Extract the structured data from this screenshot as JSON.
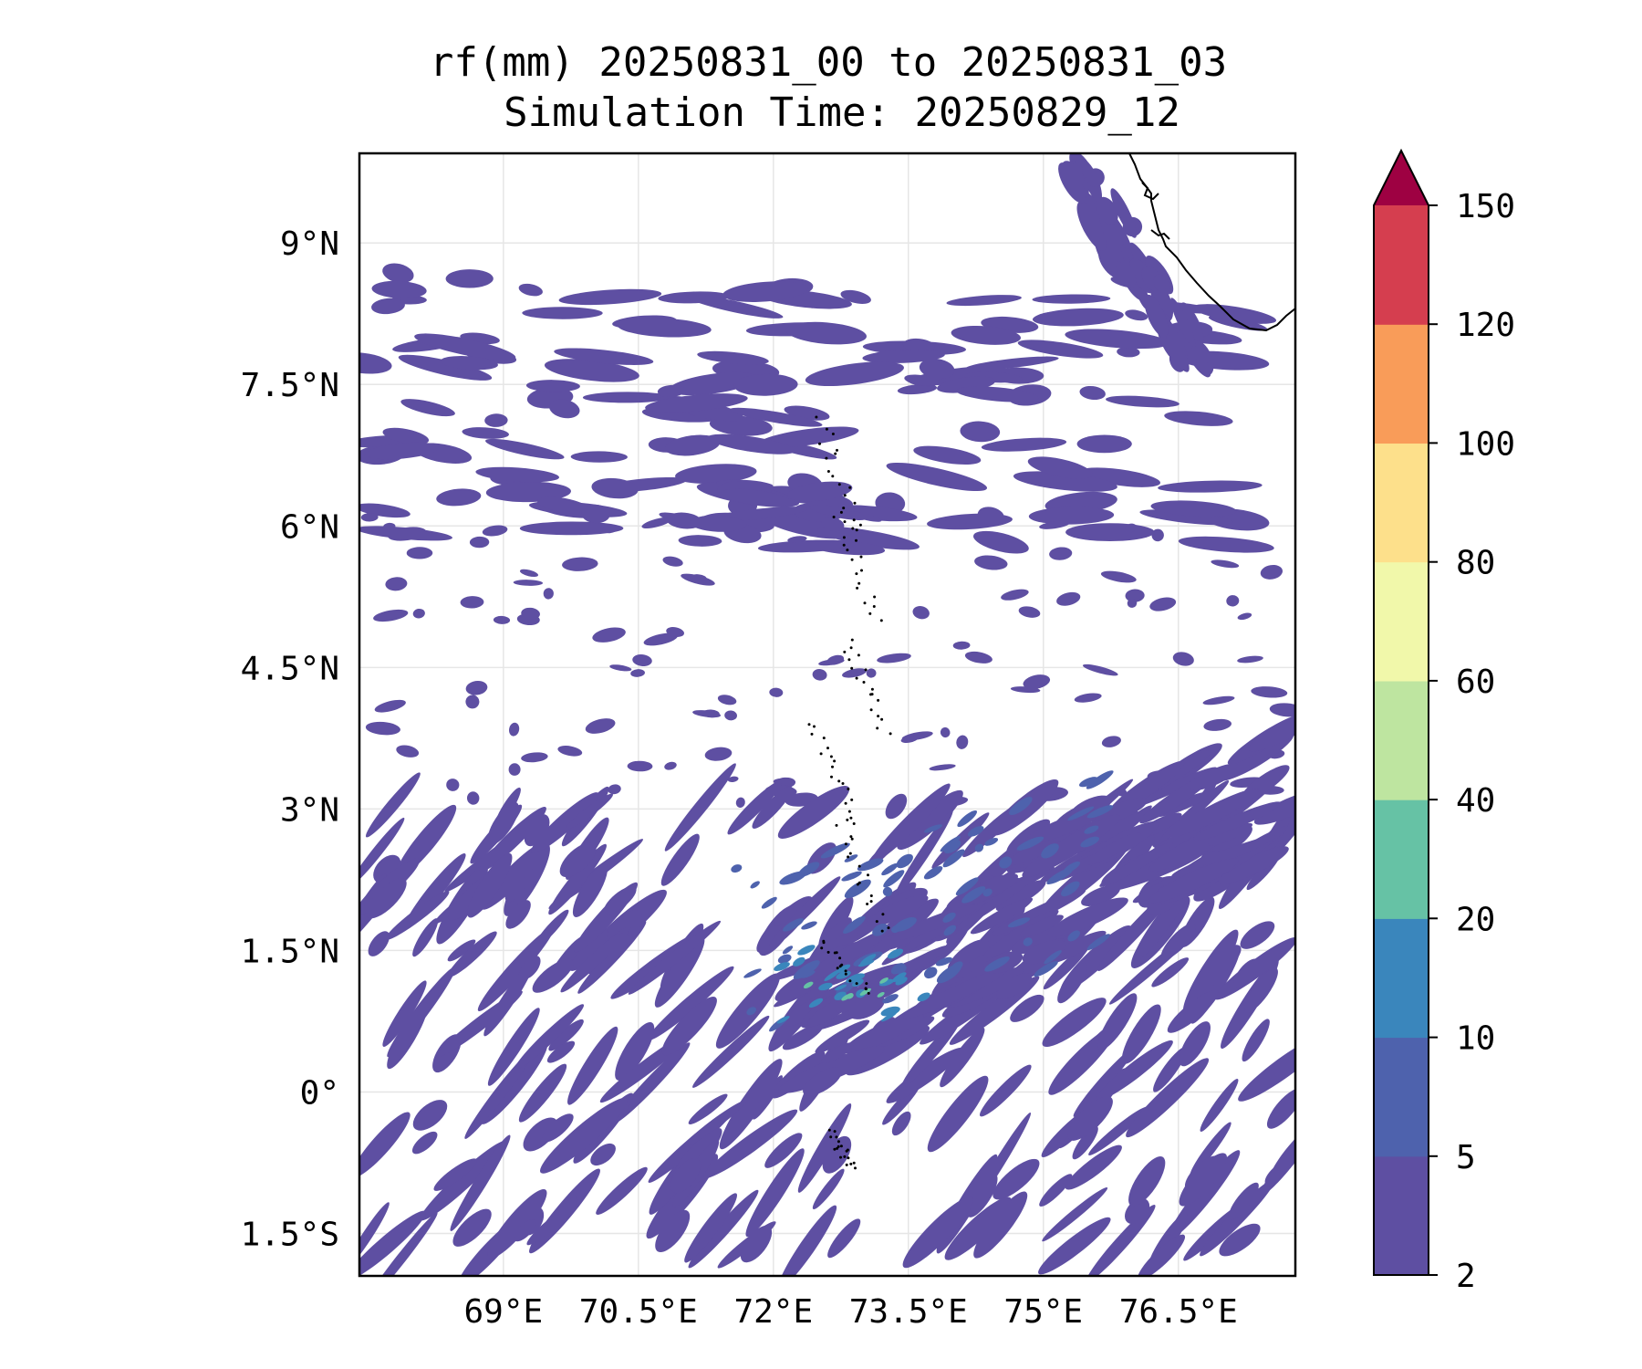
{
  "title": {
    "line1": "rf(mm) 20250831_00 to 20250831_03",
    "line2": "Simulation Time: 20250829_12"
  },
  "map": {
    "lon_range": [
      67.4,
      77.8
    ],
    "lat_range": [
      -1.95,
      9.95
    ],
    "lon_ticks": [
      {
        "value": 69,
        "label": "69°E"
      },
      {
        "value": 70.5,
        "label": "70.5°E"
      },
      {
        "value": 72,
        "label": "72°E"
      },
      {
        "value": 73.5,
        "label": "73.5°E"
      },
      {
        "value": 75,
        "label": "75°E"
      },
      {
        "value": 76.5,
        "label": "76.5°E"
      }
    ],
    "lat_ticks": [
      {
        "value": 9,
        "label": "9°N"
      },
      {
        "value": 7.5,
        "label": "7.5°N"
      },
      {
        "value": 6,
        "label": "6°N"
      },
      {
        "value": 4.5,
        "label": "4.5°N"
      },
      {
        "value": 3,
        "label": "3°N"
      },
      {
        "value": 1.5,
        "label": "1.5°N"
      },
      {
        "value": 0,
        "label": "0°"
      },
      {
        "value": -1.5,
        "label": "1.5°S"
      }
    ],
    "grid": true,
    "features": [
      "India southwest coastline (top-right)",
      "Maldives atolls (dotted, center)"
    ]
  },
  "colorbar": {
    "levels": [
      2,
      5,
      10,
      20,
      40,
      60,
      80,
      100,
      120,
      150
    ],
    "labels": [
      "2",
      "5",
      "10",
      "20",
      "40",
      "60",
      "80",
      "100",
      "120",
      "150"
    ],
    "colors": [
      "#5e4fa2",
      "#4e62ad",
      "#3a86bc",
      "#66c2a5",
      "#bee5a0",
      "#f1f8aa",
      "#fde08b",
      "#f99c59",
      "#d53e4f"
    ],
    "extend_color": "#9e0142",
    "extend": "max"
  },
  "colors": {
    "rain_low": "#5e4fa2",
    "rain_mid": "#4e62ad",
    "rain_high": "#3a86bc",
    "rain_peak": "#66c2a5"
  }
}
